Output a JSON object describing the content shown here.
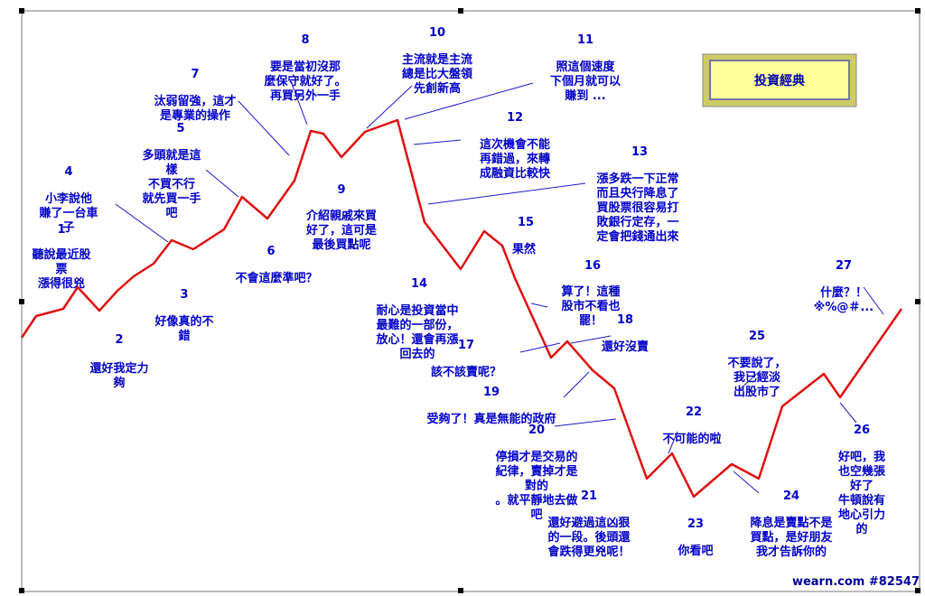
{
  "title": "投資經典",
  "footer": "wearn.com #82547",
  "line_color": "#e01010",
  "text_color": "#0000c8",
  "annotations": [
    {
      "num": "1",
      "lines": [
        "聽說最近股",
        "票",
        "漲得很兇"
      ]
    },
    {
      "num": "2",
      "lines": [
        "還好我定力",
        "夠"
      ]
    },
    {
      "num": "3",
      "lines": [
        "好像真的不",
        "錯"
      ]
    },
    {
      "num": "4",
      "lines": [
        "小李說他",
        "賺了一台車",
        "子"
      ]
    },
    {
      "num": "5",
      "lines": [
        "多頭就是這",
        "樣",
        "不買不行",
        "就先買一手",
        "吧"
      ]
    },
    {
      "num": "6",
      "lines": [
        "不會這麼準吧？"
      ]
    },
    {
      "num": "7",
      "lines": [
        "汰弱留強，這才",
        "是專業的操作"
      ]
    },
    {
      "num": "8",
      "lines": [
        "要是當初沒那",
        "麼保守就好了。",
        "再買另外一手"
      ]
    },
    {
      "num": "9",
      "lines": [
        "介紹親戚來買",
        "好了，這可是",
        "最後買點呢"
      ]
    },
    {
      "num": "10",
      "lines": [
        "主流就是主流",
        "總是比大盤領",
        "先創新高"
      ]
    },
    {
      "num": "11",
      "lines": [
        "照這個速度",
        "下個月就可以",
        "賺到 ..."
      ]
    },
    {
      "num": "12",
      "lines": [
        "這次機會不能",
        "再錯過，來轉",
        "成融資比較快"
      ]
    },
    {
      "num": "13",
      "lines": [
        "漲多跌一下正常",
        "而且央行降息了",
        "買股票很容易打",
        "敗銀行定存，一",
        "定會把錢通出來"
      ]
    },
    {
      "num": "14",
      "lines": [
        "耐心是投資當中",
        "最難的一部份，",
        "放心！還會再漲",
        "回去的"
      ]
    },
    {
      "num": "15",
      "lines": [
        "果然"
      ]
    },
    {
      "num": "16",
      "lines": [
        "算了！這種",
        "股市不看也",
        "罷！"
      ]
    },
    {
      "num": "17",
      "lines": [
        "該不該賣呢？"
      ]
    },
    {
      "num": "18",
      "lines": [
        "還好沒賣"
      ]
    },
    {
      "num": "19",
      "lines": [
        "受夠了！真是無能的政府"
      ]
    },
    {
      "num": "20",
      "lines": [
        "停損才是交易的",
        "紀律，賣掉才是",
        "對的",
        "。就平靜地去做",
        "吧"
      ]
    },
    {
      "num": "21",
      "lines": [
        "還好避過這凶狠",
        "的一段。後頭還",
        "會跌得更兇呢！"
      ]
    },
    {
      "num": "22",
      "lines": [
        "不可能的啦"
      ]
    },
    {
      "num": "23",
      "lines": [
        "你看吧"
      ]
    },
    {
      "num": "24",
      "lines": [
        "降息是賣點不是",
        "買點，是好朋友",
        "我才告訴你的"
      ]
    },
    {
      "num": "25",
      "lines": [
        "不要說了，",
        "我已經淡",
        "出股市了"
      ]
    },
    {
      "num": "26",
      "lines": [
        "好吧，我",
        "也空幾張",
        "好了",
        "牛頓說有",
        "地心引力",
        "的"
      ]
    },
    {
      "num": "27",
      "lines": [
        "什麼？！",
        "※%@＃..."
      ]
    }
  ]
}
